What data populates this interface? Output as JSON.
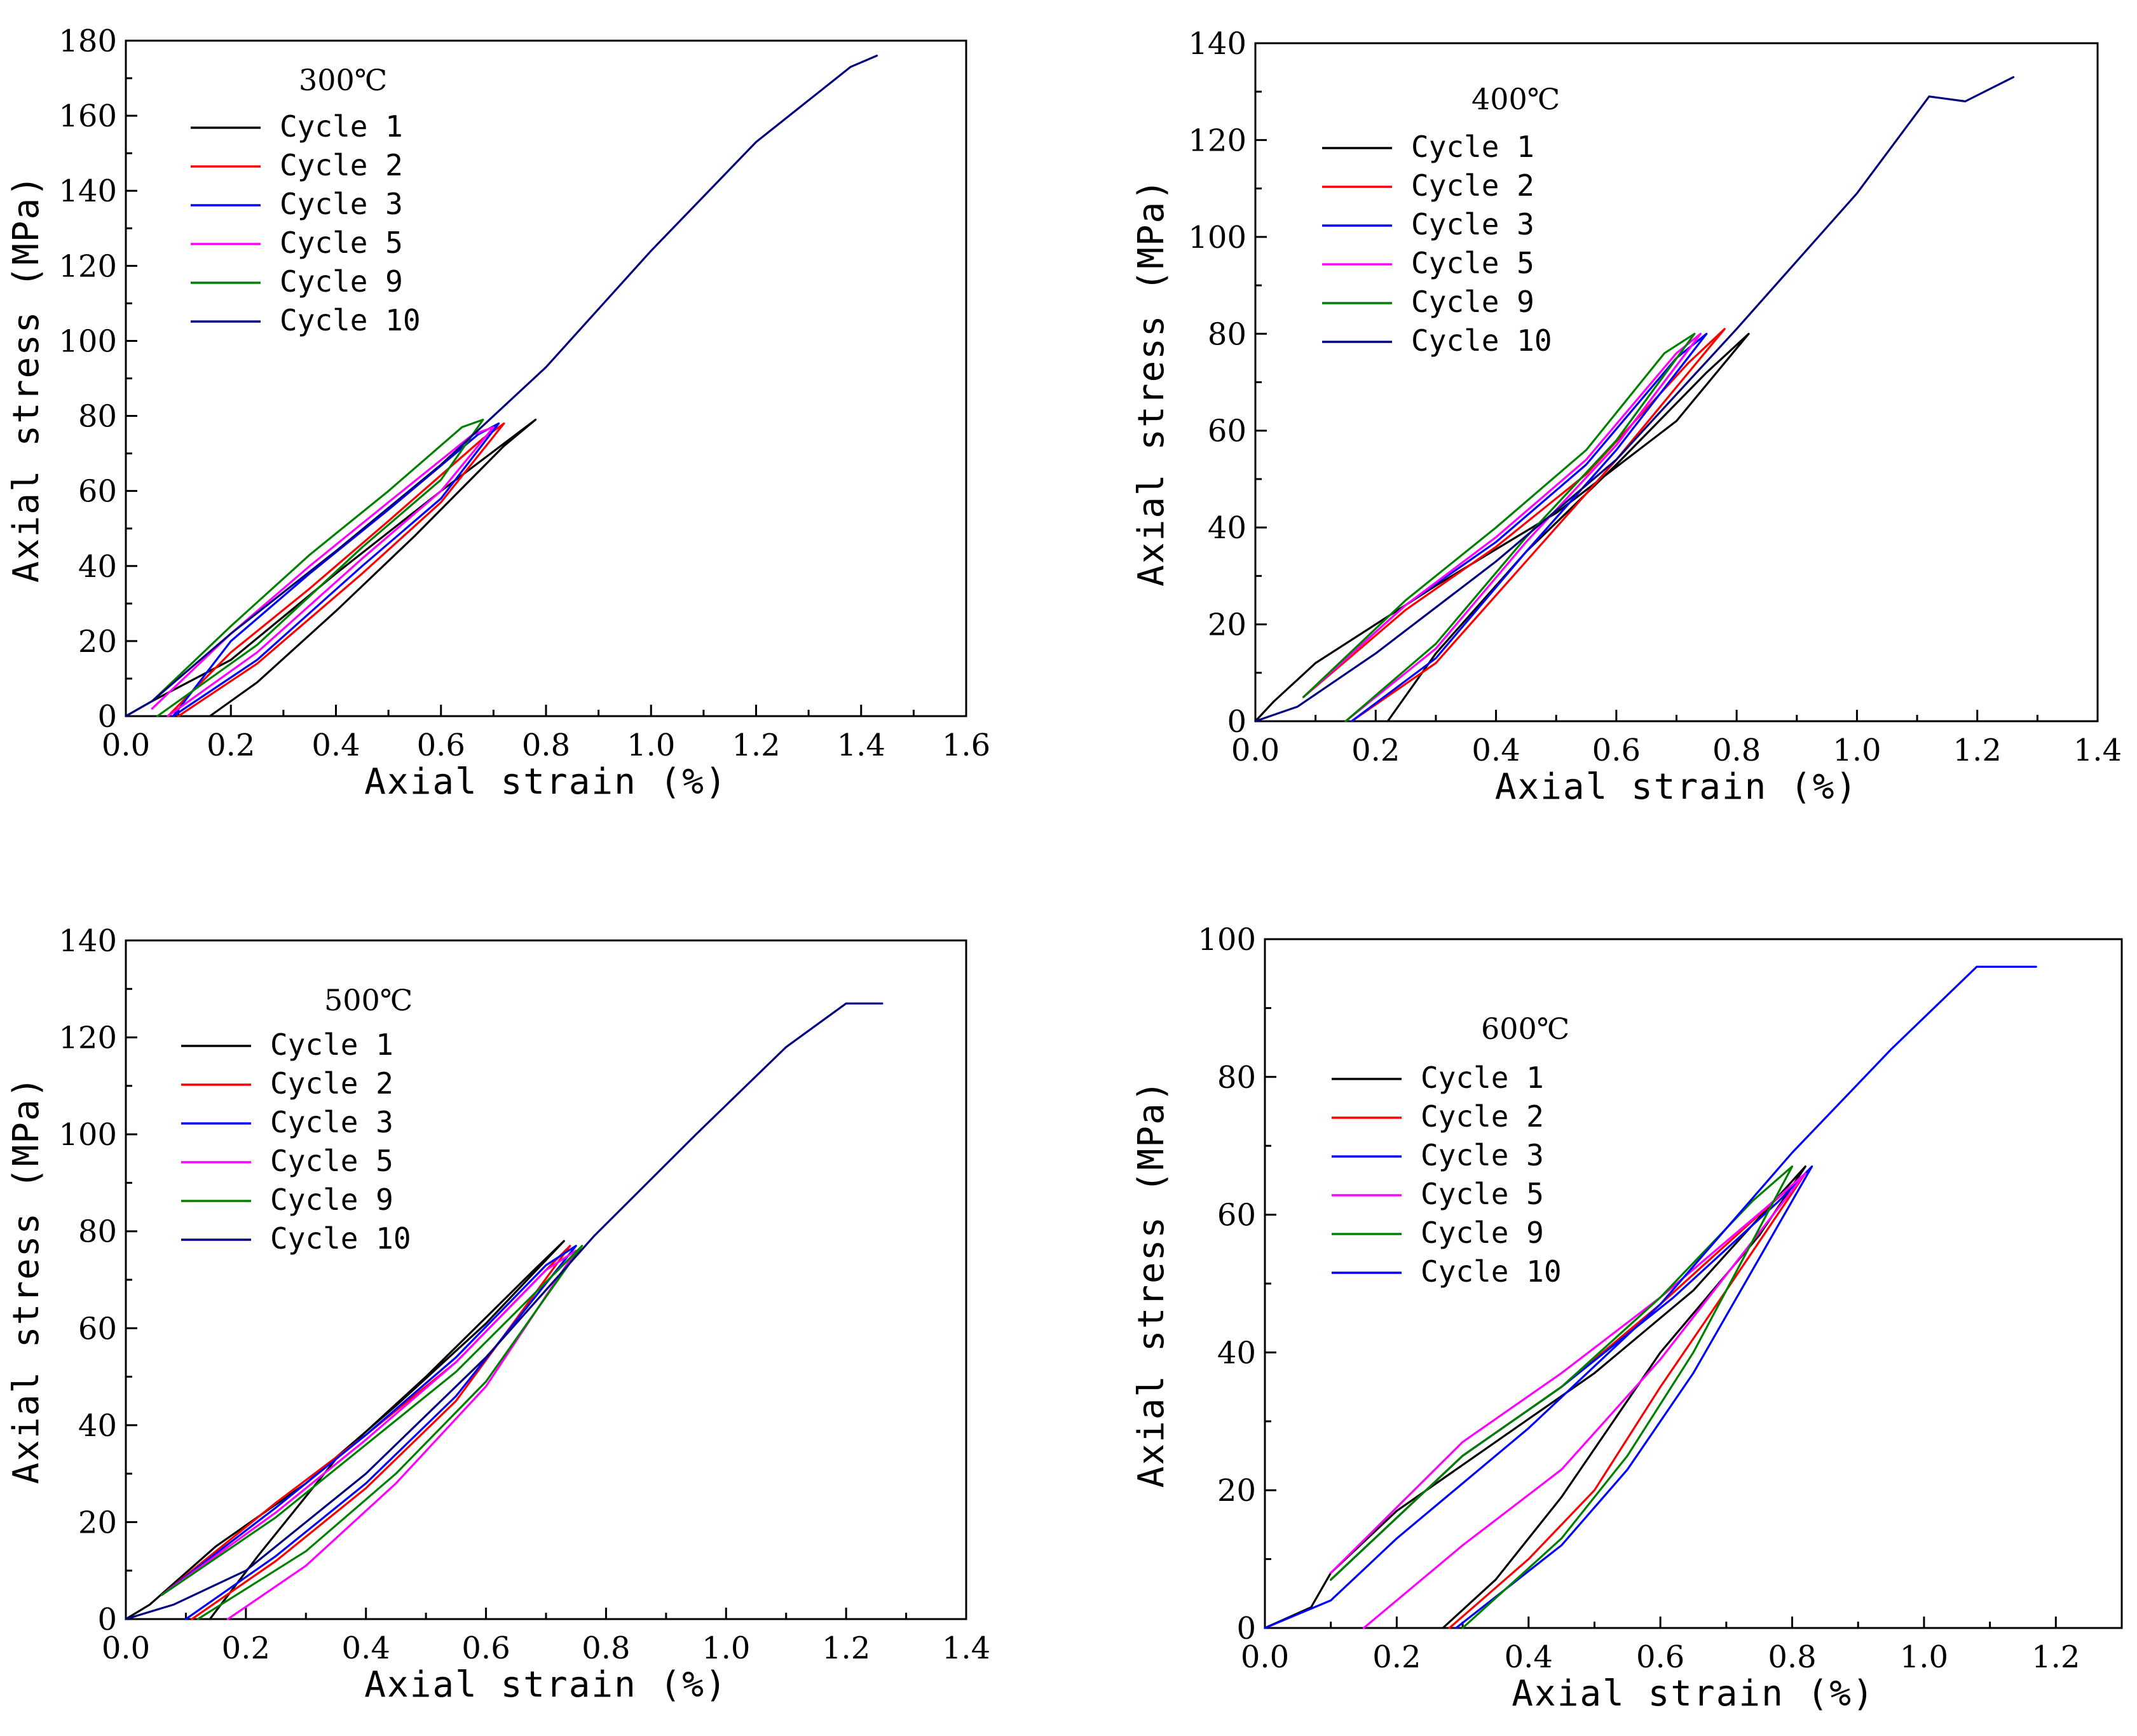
{
  "chart_data": [
    {
      "type": "line",
      "title": "300℃",
      "xlabel": "Axial strain (%)",
      "ylabel": "Axial stress (MPa)",
      "xlim": [
        0,
        1.6
      ],
      "ylim": [
        0,
        180
      ],
      "xticks": [
        "0.0",
        "0.2",
        "0.4",
        "0.6",
        "0.8",
        "1.0",
        "1.2",
        "1.4",
        "1.6"
      ],
      "yticks": [
        "0",
        "20",
        "40",
        "60",
        "80",
        "100",
        "120",
        "140",
        "160",
        "180"
      ],
      "legend_position": "top-left",
      "series": [
        {
          "name": "Cycle 1",
          "color": "#000000",
          "x": [
            0.0,
            0.05,
            0.2,
            0.4,
            0.6,
            0.78,
            0.72,
            0.55,
            0.4,
            0.25,
            0.16
          ],
          "y": [
            0,
            4,
            15,
            38,
            60,
            79,
            72,
            48,
            28,
            9,
            0
          ]
        },
        {
          "name": "Cycle 2",
          "color": "#ff0000",
          "x": [
            0.1,
            0.25,
            0.45,
            0.6,
            0.72,
            0.68,
            0.5,
            0.35,
            0.2,
            0.08
          ],
          "y": [
            0,
            14,
            38,
            57,
            78,
            74,
            52,
            34,
            17,
            0
          ]
        },
        {
          "name": "Cycle 3",
          "color": "#0000ff",
          "x": [
            0.09,
            0.25,
            0.45,
            0.6,
            0.71,
            0.67,
            0.5,
            0.35,
            0.2,
            0.09
          ],
          "y": [
            0,
            15,
            40,
            58,
            78,
            75,
            55,
            38,
            20,
            0
          ]
        },
        {
          "name": "Cycle 5",
          "color": "#ff00ff",
          "x": [
            0.08,
            0.25,
            0.45,
            0.6,
            0.7,
            0.66,
            0.5,
            0.35,
            0.2,
            0.05
          ],
          "y": [
            0,
            17,
            42,
            60,
            77,
            75,
            57,
            40,
            22,
            2
          ]
        },
        {
          "name": "Cycle 9",
          "color": "#008000",
          "x": [
            0.06,
            0.25,
            0.45,
            0.6,
            0.68,
            0.64,
            0.5,
            0.35,
            0.2,
            0.05
          ],
          "y": [
            0,
            19,
            45,
            63,
            79,
            77,
            60,
            43,
            24,
            4
          ]
        },
        {
          "name": "Cycle 10",
          "color": "#000080",
          "x": [
            0.0,
            0.05,
            0.2,
            0.4,
            0.6,
            0.8,
            1.0,
            1.2,
            1.38,
            1.43
          ],
          "y": [
            0,
            4,
            22,
            44,
            67,
            93,
            124,
            153,
            173,
            176
          ]
        }
      ]
    },
    {
      "type": "line",
      "title": "400℃",
      "xlabel": "Axial strain (%)",
      "ylabel": "Axial stress (MPa)",
      "xlim": [
        0,
        1.4
      ],
      "ylim": [
        0,
        140
      ],
      "xticks": [
        "0.0",
        "0.2",
        "0.4",
        "0.6",
        "0.8",
        "1.0",
        "1.2",
        "1.4"
      ],
      "yticks": [
        "0",
        "20",
        "40",
        "60",
        "80",
        "100",
        "120",
        "140"
      ],
      "legend_position": "top-left",
      "series": [
        {
          "name": "Cycle 1",
          "color": "#000000",
          "x": [
            0.0,
            0.03,
            0.1,
            0.3,
            0.5,
            0.7,
            0.82,
            0.75,
            0.6,
            0.45,
            0.3,
            0.22
          ],
          "y": [
            0,
            4,
            12,
            28,
            43,
            62,
            80,
            72,
            53,
            35,
            14,
            0
          ]
        },
        {
          "name": "Cycle 2",
          "color": "#ff0000",
          "x": [
            0.16,
            0.3,
            0.45,
            0.6,
            0.78,
            0.72,
            0.55,
            0.4,
            0.25,
            0.08
          ],
          "y": [
            0,
            12,
            33,
            54,
            81,
            74,
            51,
            36,
            23,
            5
          ]
        },
        {
          "name": "Cycle 3",
          "color": "#0000ff",
          "x": [
            0.16,
            0.3,
            0.45,
            0.6,
            0.75,
            0.7,
            0.55,
            0.4,
            0.25,
            0.08
          ],
          "y": [
            0,
            13,
            35,
            56,
            80,
            75,
            53,
            37,
            24,
            5
          ]
        },
        {
          "name": "Cycle 5",
          "color": "#ff00ff",
          "x": [
            0.15,
            0.3,
            0.45,
            0.6,
            0.74,
            0.7,
            0.55,
            0.4,
            0.25,
            0.08
          ],
          "y": [
            0,
            15,
            37,
            57,
            80,
            76,
            54,
            38,
            24,
            5
          ]
        },
        {
          "name": "Cycle 9",
          "color": "#008000",
          "x": [
            0.15,
            0.3,
            0.45,
            0.6,
            0.73,
            0.68,
            0.55,
            0.4,
            0.25,
            0.08
          ],
          "y": [
            0,
            16,
            38,
            58,
            80,
            76,
            56,
            40,
            25,
            5
          ]
        },
        {
          "name": "Cycle 10",
          "color": "#000080",
          "x": [
            0.0,
            0.07,
            0.2,
            0.4,
            0.6,
            0.8,
            1.0,
            1.12,
            1.18,
            1.26
          ],
          "y": [
            0,
            3,
            14,
            33,
            54,
            81,
            109,
            129,
            128,
            133
          ]
        }
      ]
    },
    {
      "type": "line",
      "title": "500℃",
      "xlabel": "Axial strain (%)",
      "ylabel": "Axial stress (MPa)",
      "xlim": [
        0,
        1.4
      ],
      "ylim": [
        0,
        140
      ],
      "xticks": [
        "0.0",
        "0.2",
        "0.4",
        "0.6",
        "0.8",
        "1.0",
        "1.2",
        "1.4"
      ],
      "yticks": [
        "0",
        "20",
        "40",
        "60",
        "80",
        "100",
        "120",
        "140"
      ],
      "legend_position": "top-left",
      "series": [
        {
          "name": "Cycle 1",
          "color": "#000000",
          "x": [
            0.0,
            0.04,
            0.15,
            0.3,
            0.45,
            0.6,
            0.73,
            0.68,
            0.5,
            0.35,
            0.22,
            0.14
          ],
          "y": [
            0,
            3,
            15,
            28,
            44,
            61,
            78,
            72,
            50,
            33,
            13,
            0
          ]
        },
        {
          "name": "Cycle 2",
          "color": "#ff0000",
          "x": [
            0.11,
            0.25,
            0.4,
            0.55,
            0.74,
            0.7,
            0.55,
            0.4,
            0.25,
            0.06
          ],
          "y": [
            0,
            12,
            27,
            45,
            77,
            72,
            53,
            38,
            24,
            5
          ]
        },
        {
          "name": "Cycle 3",
          "color": "#0000ff",
          "x": [
            0.1,
            0.25,
            0.4,
            0.55,
            0.75,
            0.7,
            0.55,
            0.4,
            0.25,
            0.06
          ],
          "y": [
            0,
            13,
            28,
            46,
            77,
            73,
            54,
            38,
            23,
            5
          ]
        },
        {
          "name": "Cycle 5",
          "color": "#ff00ff",
          "x": [
            0.17,
            0.3,
            0.45,
            0.6,
            0.75,
            0.7,
            0.55,
            0.4,
            0.25,
            0.06
          ],
          "y": [
            0,
            11,
            28,
            48,
            76,
            72,
            53,
            37,
            22,
            5
          ]
        },
        {
          "name": "Cycle 9",
          "color": "#008000",
          "x": [
            0.12,
            0.3,
            0.45,
            0.6,
            0.76,
            0.72,
            0.55,
            0.4,
            0.25,
            0.06
          ],
          "y": [
            0,
            14,
            30,
            49,
            77,
            72,
            51,
            36,
            21,
            5
          ]
        },
        {
          "name": "Cycle 10",
          "color": "#000080",
          "x": [
            0.0,
            0.08,
            0.2,
            0.4,
            0.6,
            0.78,
            0.95,
            1.1,
            1.2,
            1.26
          ],
          "y": [
            0,
            3,
            10,
            30,
            54,
            79,
            100,
            118,
            127,
            127
          ]
        }
      ]
    },
    {
      "type": "line",
      "title": "600℃",
      "xlabel": "Axial strain (%)",
      "ylabel": "Axial stress (MPa)",
      "xlim": [
        0,
        1.3
      ],
      "ylim": [
        0,
        100
      ],
      "xticks": [
        "0.0",
        "0.2",
        "0.4",
        "0.6",
        "0.8",
        "1.0",
        "1.2"
      ],
      "yticks": [
        "0",
        "20",
        "40",
        "60",
        "80",
        "100"
      ],
      "legend_position": "top-left",
      "series": [
        {
          "name": "Cycle 1",
          "color": "#000000",
          "x": [
            0.0,
            0.07,
            0.1,
            0.2,
            0.35,
            0.5,
            0.65,
            0.82,
            0.75,
            0.6,
            0.45,
            0.35,
            0.27
          ],
          "y": [
            0,
            3,
            8,
            17,
            27,
            37,
            49,
            67,
            57,
            40,
            19,
            7,
            0
          ]
        },
        {
          "name": "Cycle 2",
          "color": "#ff0000",
          "x": [
            0.28,
            0.4,
            0.5,
            0.6,
            0.7,
            0.82,
            0.75,
            0.6,
            0.45,
            0.3,
            0.1
          ],
          "y": [
            0,
            10,
            20,
            35,
            49,
            66,
            60,
            47,
            35,
            25,
            7
          ]
        },
        {
          "name": "Cycle 3",
          "color": "#0000ff",
          "x": [
            0.29,
            0.45,
            0.55,
            0.65,
            0.83,
            0.78,
            0.62,
            0.45,
            0.3,
            0.1
          ],
          "y": [
            0,
            12,
            23,
            37,
            67,
            62,
            48,
            35,
            25,
            7
          ]
        },
        {
          "name": "Cycle 5",
          "color": "#ff00ff",
          "x": [
            0.15,
            0.3,
            0.45,
            0.6,
            0.82,
            0.76,
            0.6,
            0.45,
            0.3,
            0.1
          ],
          "y": [
            0,
            12,
            23,
            39,
            66,
            61,
            48,
            37,
            27,
            8
          ]
        },
        {
          "name": "Cycle 9",
          "color": "#008000",
          "x": [
            0.3,
            0.45,
            0.55,
            0.65,
            0.8,
            0.74,
            0.6,
            0.45,
            0.3,
            0.1
          ],
          "y": [
            0,
            13,
            25,
            40,
            67,
            62,
            48,
            35,
            25,
            7
          ]
        },
        {
          "name": "Cycle 10",
          "color": "#0000ff",
          "x": [
            0.0,
            0.1,
            0.2,
            0.4,
            0.6,
            0.8,
            0.95,
            1.08,
            1.12,
            1.17
          ],
          "y": [
            0,
            4,
            13,
            29,
            47,
            69,
            84,
            96,
            96,
            96
          ]
        }
      ]
    }
  ]
}
